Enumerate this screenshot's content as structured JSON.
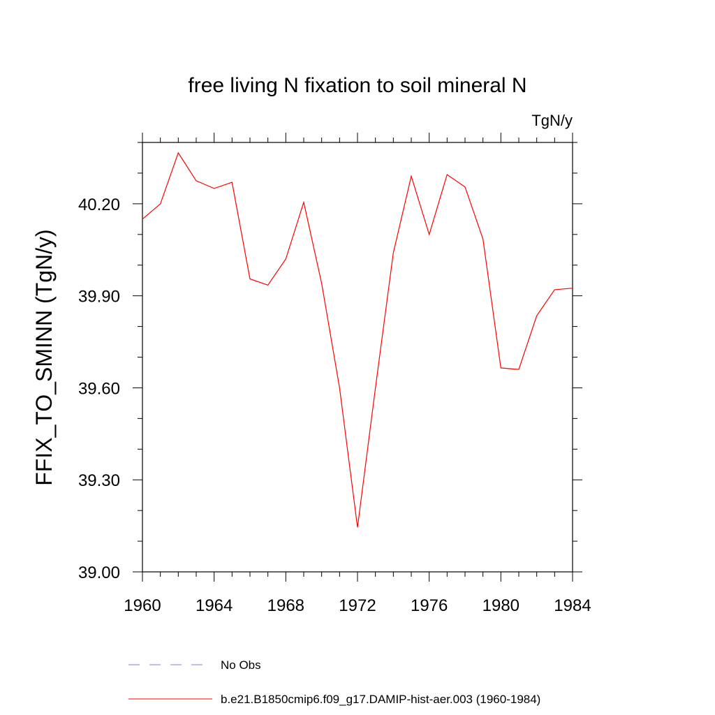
{
  "chart_data": {
    "type": "line",
    "title": "free living N fixation to soil mineral N",
    "units_label": "TgN/y",
    "ylabel": "FFIX_TO_SMINN  (TgN/y)",
    "xlabel": "",
    "xlim": [
      1960,
      1984
    ],
    "ylim": [
      39.0,
      40.4
    ],
    "x_ticks": [
      1960,
      1964,
      1968,
      1972,
      1976,
      1980,
      1984
    ],
    "x_tick_labels": [
      "1960",
      "1964",
      "1968",
      "1972",
      "1976",
      "1980",
      "1984"
    ],
    "y_ticks": [
      39.0,
      39.3,
      39.6,
      39.9,
      40.2
    ],
    "y_tick_labels": [
      "39.00",
      "39.30",
      "39.60",
      "39.90",
      "40.20"
    ],
    "x_minor_step": 1,
    "y_minor_step": 0.1,
    "grid": false,
    "legend_position": "bottom",
    "series": [
      {
        "name": "b.e21.B1850cmip6.f09_g17.DAMIP-hist-aer.003 (1960-1984)",
        "color": "#ff0000",
        "dash": "solid",
        "x": [
          1960,
          1961,
          1962,
          1963,
          1964,
          1965,
          1966,
          1967,
          1968,
          1969,
          1970,
          1971,
          1972,
          1973,
          1974,
          1975,
          1976,
          1977,
          1978,
          1979,
          1980,
          1981,
          1982,
          1983,
          1984
        ],
        "values": [
          40.15,
          40.2,
          40.366,
          40.275,
          40.25,
          40.27,
          39.955,
          39.935,
          40.02,
          40.205,
          39.94,
          39.6,
          39.145,
          39.6,
          40.04,
          40.29,
          40.1,
          40.295,
          40.255,
          40.085,
          39.665,
          39.66,
          39.835,
          39.92,
          39.925
        ]
      }
    ],
    "legend": [
      {
        "label": "No Obs",
        "color": "#7f7fd0",
        "dash": "dashed"
      },
      {
        "label": "b.e21.B1850cmip6.f09_g17.DAMIP-hist-aer.003 (1960-1984)",
        "color": "#ff0000",
        "dash": "solid"
      }
    ]
  }
}
